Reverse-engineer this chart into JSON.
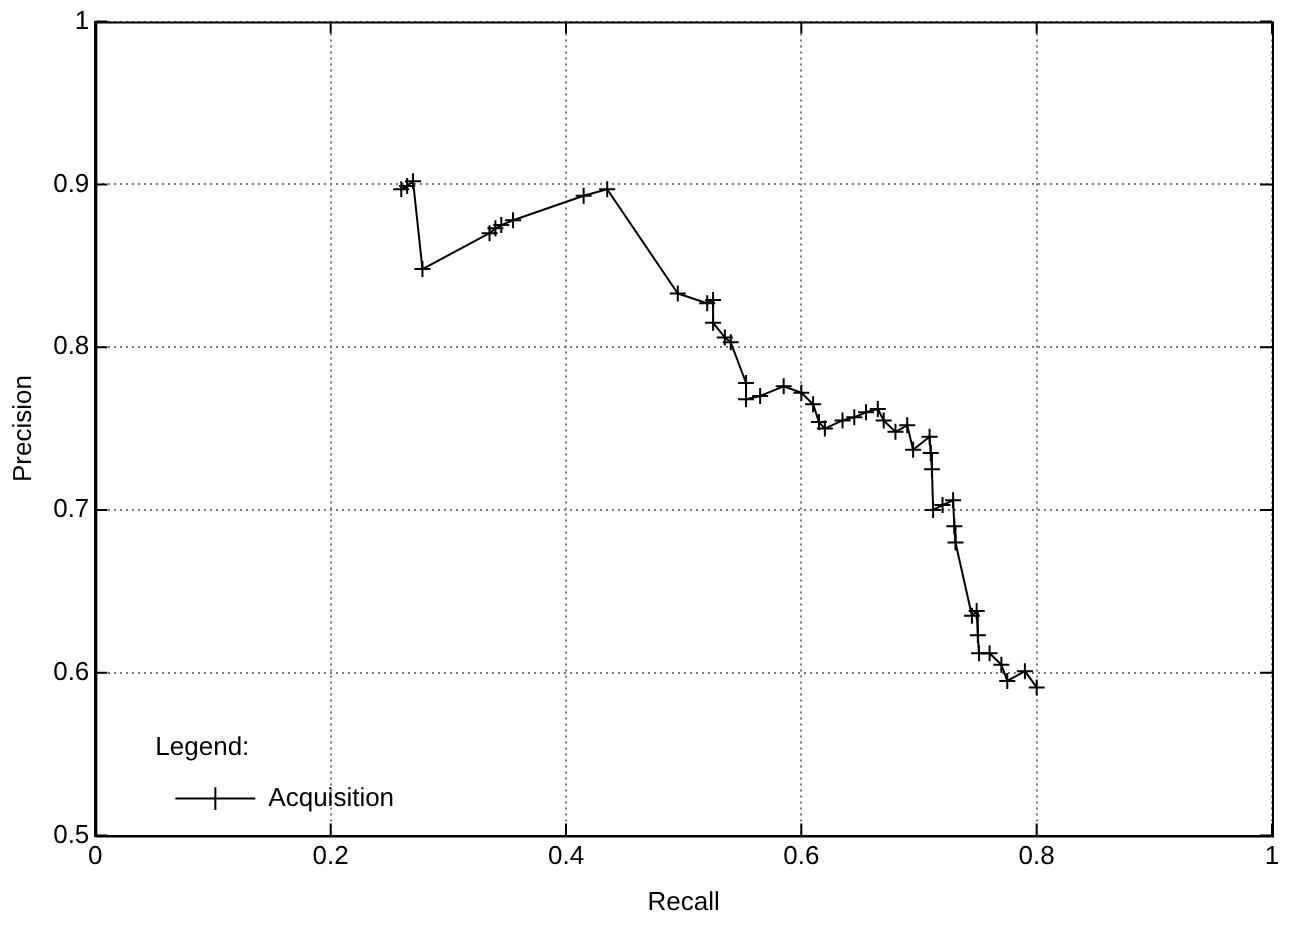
{
  "chart_data": {
    "type": "line",
    "xlabel": "Recall",
    "ylabel": "Precision",
    "legend_title": "Legend:",
    "legend": "bottom left",
    "grid": true,
    "marker": "cross",
    "line_style": "solid",
    "xlim": [
      0,
      1
    ],
    "xticks": [
      0,
      0.2,
      0.4,
      0.6,
      0.8,
      1
    ],
    "ylim": [
      0.5,
      1
    ],
    "yticks": [
      0.5,
      0.6,
      0.7,
      0.8,
      0.9,
      1
    ],
    "series": [
      {
        "name": "Acquisition",
        "color": "#000000",
        "x": [
          0.26,
          0.265,
          0.27,
          0.278,
          0.335,
          0.34,
          0.345,
          0.355,
          0.415,
          0.435,
          0.495,
          0.52,
          0.525,
          0.525,
          0.535,
          0.54,
          0.553,
          0.553,
          0.565,
          0.585,
          0.6,
          0.61,
          0.615,
          0.62,
          0.635,
          0.645,
          0.655,
          0.665,
          0.67,
          0.68,
          0.69,
          0.695,
          0.709,
          0.71,
          0.711,
          0.712,
          0.72,
          0.729,
          0.73,
          0.731,
          0.745,
          0.749,
          0.75,
          0.751,
          0.76,
          0.77,
          0.775,
          0.79,
          0.8
        ],
        "values": [
          0.897,
          0.899,
          0.902,
          0.848,
          0.87,
          0.873,
          0.875,
          0.878,
          0.893,
          0.897,
          0.833,
          0.827,
          0.829,
          0.815,
          0.806,
          0.803,
          0.778,
          0.768,
          0.77,
          0.776,
          0.772,
          0.765,
          0.754,
          0.75,
          0.755,
          0.757,
          0.76,
          0.762,
          0.755,
          0.748,
          0.752,
          0.737,
          0.745,
          0.735,
          0.725,
          0.7,
          0.703,
          0.706,
          0.69,
          0.68,
          0.635,
          0.638,
          0.623,
          0.612,
          0.612,
          0.605,
          0.595,
          0.601,
          0.591
        ]
      }
    ]
  }
}
